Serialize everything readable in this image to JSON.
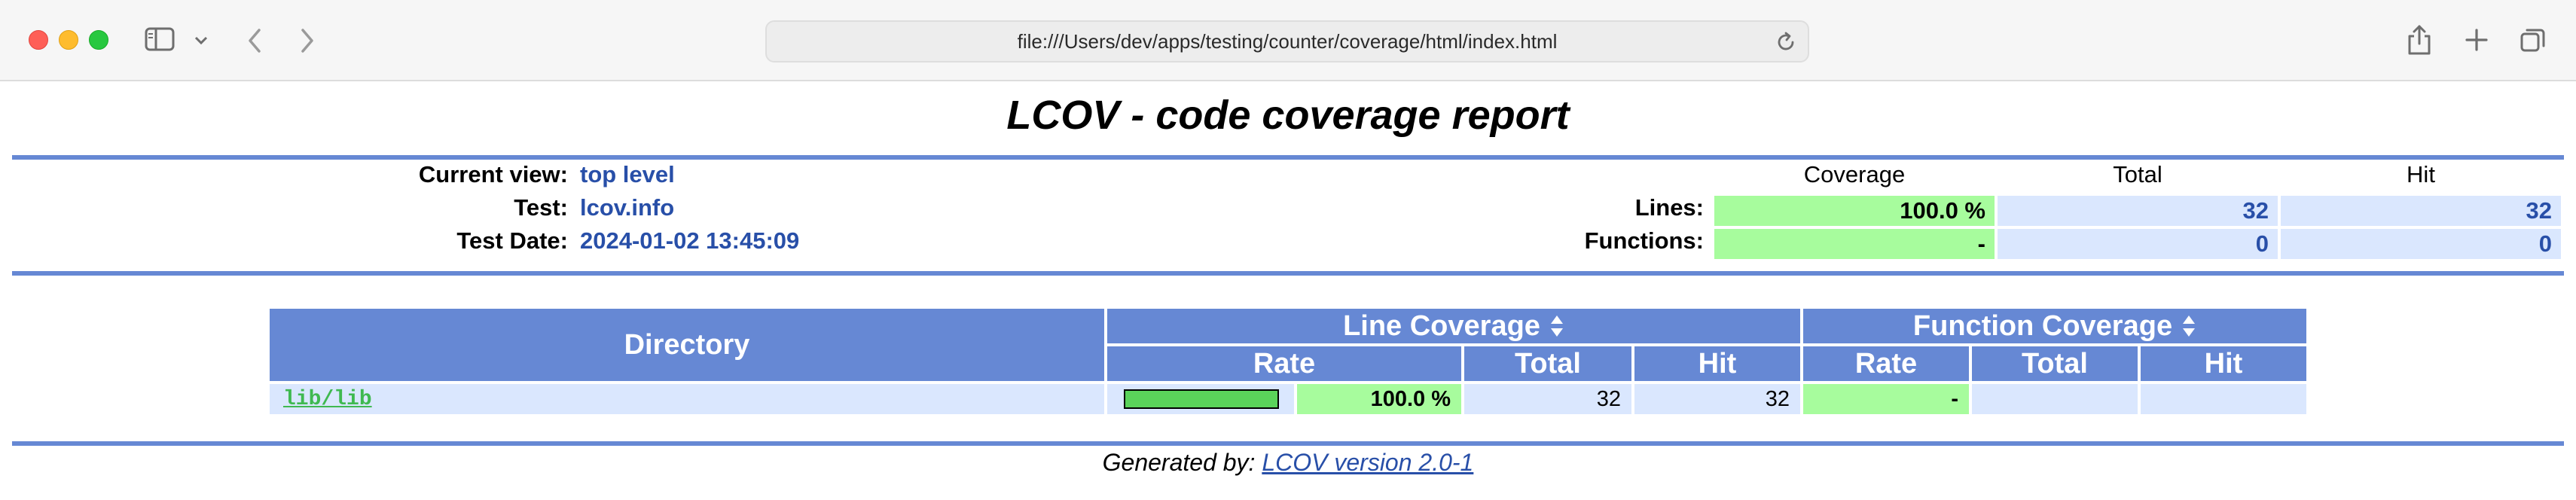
{
  "browser": {
    "url": "file:///Users/dev/apps/testing/counter/coverage/html/index.html"
  },
  "report": {
    "title": "LCOV - code coverage report",
    "info": {
      "current_view_label": "Current view:",
      "current_view_value": "top level",
      "test_label": "Test:",
      "test_value": "lcov.info",
      "test_date_label": "Test Date:",
      "test_date_value": "2024-01-02 13:45:09"
    },
    "summary": {
      "headers": {
        "coverage": "Coverage",
        "total": "Total",
        "hit": "Hit"
      },
      "lines": {
        "label": "Lines:",
        "coverage": "100.0 %",
        "total": "32",
        "hit": "32"
      },
      "functions": {
        "label": "Functions:",
        "coverage": "-",
        "total": "0",
        "hit": "0"
      }
    },
    "table": {
      "headers": {
        "directory": "Directory",
        "line_coverage": "Line Coverage",
        "function_coverage": "Function Coverage",
        "rate": "Rate",
        "total": "Total",
        "hit": "Hit"
      },
      "rows": [
        {
          "directory": "lib/lib",
          "line_bar_percent": 100,
          "line_rate": "100.0 %",
          "line_total": "32",
          "line_hit": "32",
          "function_rate": "-",
          "function_total": "",
          "function_hit": ""
        }
      ]
    },
    "footer": {
      "prefix": "Generated by:",
      "link_text": "LCOV version 2.0-1"
    }
  },
  "colors": {
    "header_blue": "#6688d4",
    "cell_blue": "#dae7fe",
    "coverage_high": "#a7fc9d",
    "bar_green": "#5ad35a",
    "value_blue": "#284fa8"
  }
}
